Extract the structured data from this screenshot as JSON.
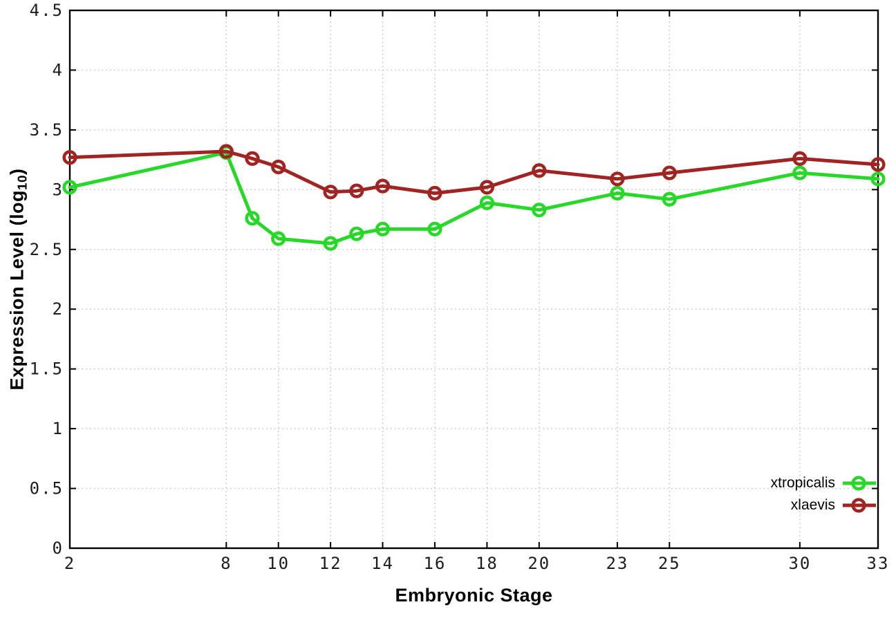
{
  "chart_data": {
    "type": "line",
    "x": [
      2,
      8,
      9,
      10,
      12,
      13,
      14,
      16,
      18,
      20,
      23,
      25,
      30,
      33
    ],
    "series": [
      {
        "name": "xtropicalis",
        "color": "#28d828",
        "values": [
          3.02,
          3.31,
          2.76,
          2.59,
          2.55,
          2.63,
          2.67,
          2.67,
          2.89,
          2.83,
          2.97,
          2.92,
          3.14,
          3.09
        ]
      },
      {
        "name": "xlaevis",
        "color": "#a02522",
        "values": [
          3.27,
          3.32,
          3.26,
          3.19,
          2.98,
          2.99,
          3.03,
          2.97,
          3.02,
          3.16,
          3.09,
          3.14,
          3.26,
          3.21
        ]
      }
    ],
    "title": "",
    "xlabel": "Embryonic Stage",
    "ylabel_prefix": "Expression Level (log",
    "ylabel_sub": "10",
    "ylabel_suffix": ")",
    "xlim": [
      2,
      33
    ],
    "ylim": [
      0,
      4.5
    ],
    "x_ticks": [
      2,
      8,
      10,
      12,
      14,
      16,
      18,
      20,
      23,
      25,
      30,
      33
    ],
    "x_tick_labels": [
      "2",
      "8",
      "10",
      "12",
      "14",
      "16",
      "18",
      "20",
      "23",
      "25",
      "30",
      "33"
    ],
    "y_ticks": [
      0,
      0.5,
      1,
      1.5,
      2,
      2.5,
      3,
      3.5,
      4,
      4.5
    ],
    "y_tick_labels": [
      "0",
      "0.5",
      "1",
      "1.5",
      "2",
      "2.5",
      "3",
      "3.5",
      "4",
      "4.5"
    ],
    "grid": true,
    "grid_style": "dotted",
    "grid_color": "#c4c4c4",
    "axis_color": "#000000",
    "legend_position": "bottom-right-inside",
    "marker": "open-circle"
  }
}
